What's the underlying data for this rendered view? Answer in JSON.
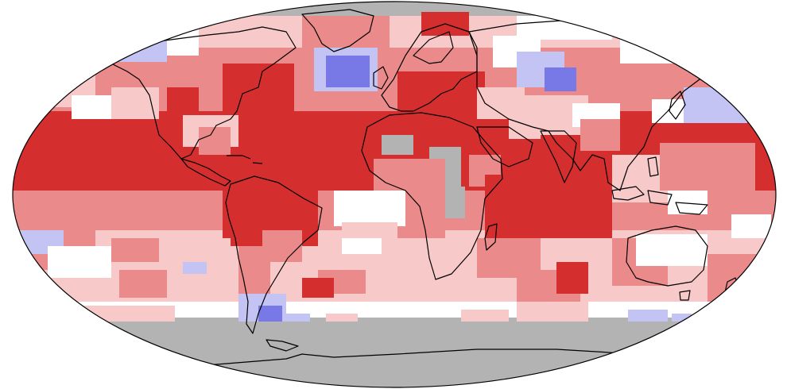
{
  "map": {
    "projection": "robinson",
    "missing_color": "#b3b3b3",
    "coast_color": "#000000",
    "palette": {
      "much_warmer": "#d42e2e",
      "warmer": "#eb8a8a",
      "slightly_warmer": "#f7c9c9",
      "near_average": "#ffffff",
      "slightly_cooler": "#c3c3f4",
      "cooler": "#7878e6",
      "much_cooler": "#3c3cd8"
    },
    "legend_visible": false
  }
}
